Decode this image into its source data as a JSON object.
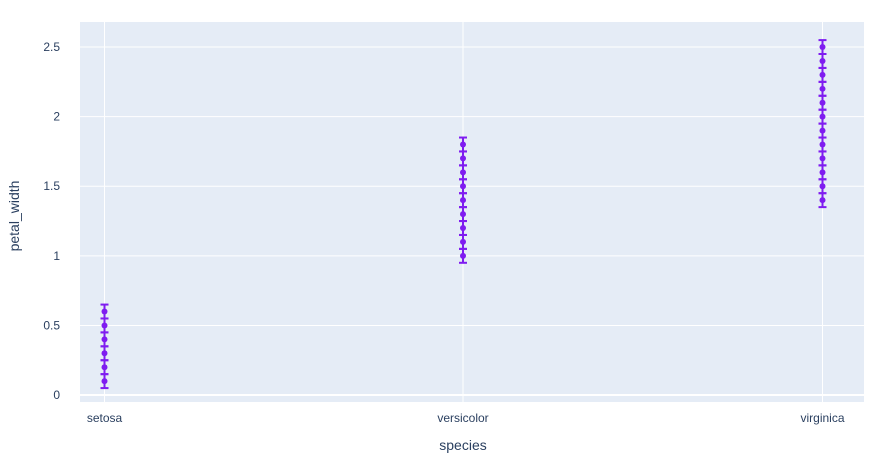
{
  "chart_data": {
    "type": "scatter",
    "xlabel": "species",
    "ylabel": "petal_width",
    "categories": [
      "setosa",
      "versicolor",
      "virginica"
    ],
    "ylim": [
      -0.05,
      2.68
    ],
    "yticks": [
      0,
      0.5,
      1,
      1.5,
      2,
      2.5
    ],
    "ytick_labels": [
      "0",
      "0.5",
      "1",
      "1.5",
      "2",
      "2.5"
    ],
    "grid": true,
    "error_bar": 0.05,
    "colors": {
      "marker": "#7f1cf0",
      "plot_bg": "#e5ecf6",
      "grid": "#ffffff",
      "text": "#2a3f5f"
    },
    "series": [
      {
        "category": "setosa",
        "values": [
          0.1,
          0.2,
          0.3,
          0.4,
          0.5,
          0.6
        ]
      },
      {
        "category": "versicolor",
        "values": [
          1.0,
          1.1,
          1.2,
          1.3,
          1.4,
          1.5,
          1.6,
          1.7,
          1.8
        ]
      },
      {
        "category": "virginica",
        "values": [
          1.4,
          1.5,
          1.6,
          1.7,
          1.8,
          1.9,
          2.0,
          2.1,
          2.2,
          2.3,
          2.4,
          2.5
        ]
      }
    ]
  }
}
